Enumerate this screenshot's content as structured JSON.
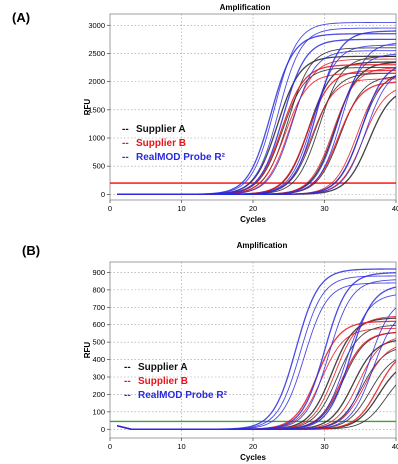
{
  "chart_data": [
    {
      "panel": "(A)",
      "type": "line",
      "title": "Amplification",
      "xlabel": "Cycles",
      "ylabel": "RFU",
      "xlim": [
        0,
        40
      ],
      "ylim": [
        -100,
        3200
      ],
      "xticks": [
        0,
        10,
        20,
        30,
        40
      ],
      "yticks": [
        0,
        500,
        1000,
        1500,
        2000,
        2500,
        3000
      ],
      "xtick_labels": [
        "0",
        "10",
        "20",
        "30",
        "40"
      ],
      "ytick_labels": [
        "0",
        "500",
        "1000",
        "1500",
        "2000",
        "2500",
        "3000"
      ],
      "grid": true,
      "threshold": 200,
      "threshold_color": "#ff0000",
      "legend_position": "center-left",
      "legend": [
        {
          "marker": "--",
          "label": "Supplier A",
          "color": "#111111"
        },
        {
          "marker": "--",
          "label": "Supplier B",
          "color": "#e8141c"
        },
        {
          "marker": "--",
          "label": "RealMOD Probe R²",
          "color": "#2a2ae0"
        }
      ],
      "series": [
        {
          "group": "blue",
          "color": "#2a2ae0",
          "curves": [
            {
              "ct": 22.5,
              "plateau": 2850
            },
            {
              "ct": 23.0,
              "plateau": 3050
            },
            {
              "ct": 23.6,
              "plateau": 2950
            },
            {
              "ct": 24.2,
              "plateau": 2750
            },
            {
              "ct": 25.5,
              "plateau": 2550
            },
            {
              "ct": 28.4,
              "plateau": 2650
            },
            {
              "ct": 28.9,
              "plateau": 2900
            },
            {
              "ct": 31.8,
              "plateau": 2500
            },
            {
              "ct": 32.4,
              "plateau": 2700
            },
            {
              "ct": 35.2,
              "plateau": 2350
            },
            {
              "ct": 35.8,
              "plateau": 2250
            }
          ]
        },
        {
          "group": "red",
          "color": "#e8141c",
          "curves": [
            {
              "ct": 24.0,
              "plateau": 2300
            },
            {
              "ct": 24.5,
              "plateau": 2150
            },
            {
              "ct": 25.2,
              "plateau": 2400
            },
            {
              "ct": 27.6,
              "plateau": 2200
            },
            {
              "ct": 28.2,
              "plateau": 2050
            },
            {
              "ct": 31.2,
              "plateau": 2250
            },
            {
              "ct": 31.9,
              "plateau": 2000
            },
            {
              "ct": 34.6,
              "plateau": 2150
            },
            {
              "ct": 35.4,
              "plateau": 1950
            }
          ]
        },
        {
          "group": "black",
          "color": "#222222",
          "curves": [
            {
              "ct": 23.4,
              "plateau": 2450
            },
            {
              "ct": 24.1,
              "plateau": 2250
            },
            {
              "ct": 24.9,
              "plateau": 2600
            },
            {
              "ct": 27.8,
              "plateau": 2350
            },
            {
              "ct": 28.5,
              "plateau": 2150
            },
            {
              "ct": 29.3,
              "plateau": 2450
            },
            {
              "ct": 31.5,
              "plateau": 2350
            },
            {
              "ct": 32.2,
              "plateau": 2100
            },
            {
              "ct": 35.0,
              "plateau": 2200
            },
            {
              "ct": 36.2,
              "plateau": 1900
            }
          ]
        }
      ]
    },
    {
      "panel": "(B)",
      "type": "line",
      "title": "Amplification",
      "xlabel": "Cycles",
      "ylabel": "RFU",
      "xlim": [
        0,
        40
      ],
      "ylim": [
        -50,
        960
      ],
      "xticks": [
        0,
        10,
        20,
        30,
        40
      ],
      "yticks": [
        0,
        100,
        200,
        300,
        400,
        500,
        600,
        700,
        800,
        900
      ],
      "xtick_labels": [
        "0",
        "10",
        "20",
        "30",
        "40"
      ],
      "ytick_labels": [
        "0",
        "100",
        "200",
        "300",
        "400",
        "500",
        "600",
        "700",
        "800",
        "900"
      ],
      "grid": true,
      "threshold": 45,
      "threshold_color": "#3aa03a",
      "legend_position": "bottom-left",
      "legend": [
        {
          "marker": "--",
          "label": "Supplier A",
          "color": "#111111"
        },
        {
          "marker": "--",
          "label": "Supplier B",
          "color": "#e8141c"
        },
        {
          "marker": "--",
          "label": "RealMOD Probe R²",
          "color": "#2a2ae0"
        }
      ],
      "series": [
        {
          "group": "blue",
          "color": "#2a2ae0",
          "curves": [
            {
              "ct": 26.0,
              "plateau": 920
            },
            {
              "ct": 26.6,
              "plateau": 880
            },
            {
              "ct": 27.2,
              "plateau": 840
            },
            {
              "ct": 30.0,
              "plateau": 900
            },
            {
              "ct": 30.6,
              "plateau": 860
            },
            {
              "ct": 33.0,
              "plateau": 780
            },
            {
              "ct": 33.6,
              "plateau": 830
            },
            {
              "ct": 36.2,
              "plateau": 760
            },
            {
              "ct": 36.8,
              "plateau": 700
            }
          ]
        },
        {
          "group": "red",
          "color": "#e8141c",
          "curves": [
            {
              "ct": 29.0,
              "plateau": 620
            },
            {
              "ct": 29.6,
              "plateau": 580
            },
            {
              "ct": 31.5,
              "plateau": 650
            },
            {
              "ct": 32.4,
              "plateau": 560
            },
            {
              "ct": 34.8,
              "plateau": 540
            },
            {
              "ct": 35.6,
              "plateau": 500
            },
            {
              "ct": 37.5,
              "plateau": 470
            }
          ]
        },
        {
          "group": "black",
          "color": "#222222",
          "curves": [
            {
              "ct": 31.0,
              "plateau": 640
            },
            {
              "ct": 31.8,
              "plateau": 600
            },
            {
              "ct": 32.6,
              "plateau": 560
            },
            {
              "ct": 34.0,
              "plateau": 520
            },
            {
              "ct": 35.2,
              "plateau": 480
            },
            {
              "ct": 36.4,
              "plateau": 440
            },
            {
              "ct": 37.6,
              "plateau": 400
            },
            {
              "ct": 38.6,
              "plateau": 360
            }
          ]
        }
      ]
    }
  ]
}
